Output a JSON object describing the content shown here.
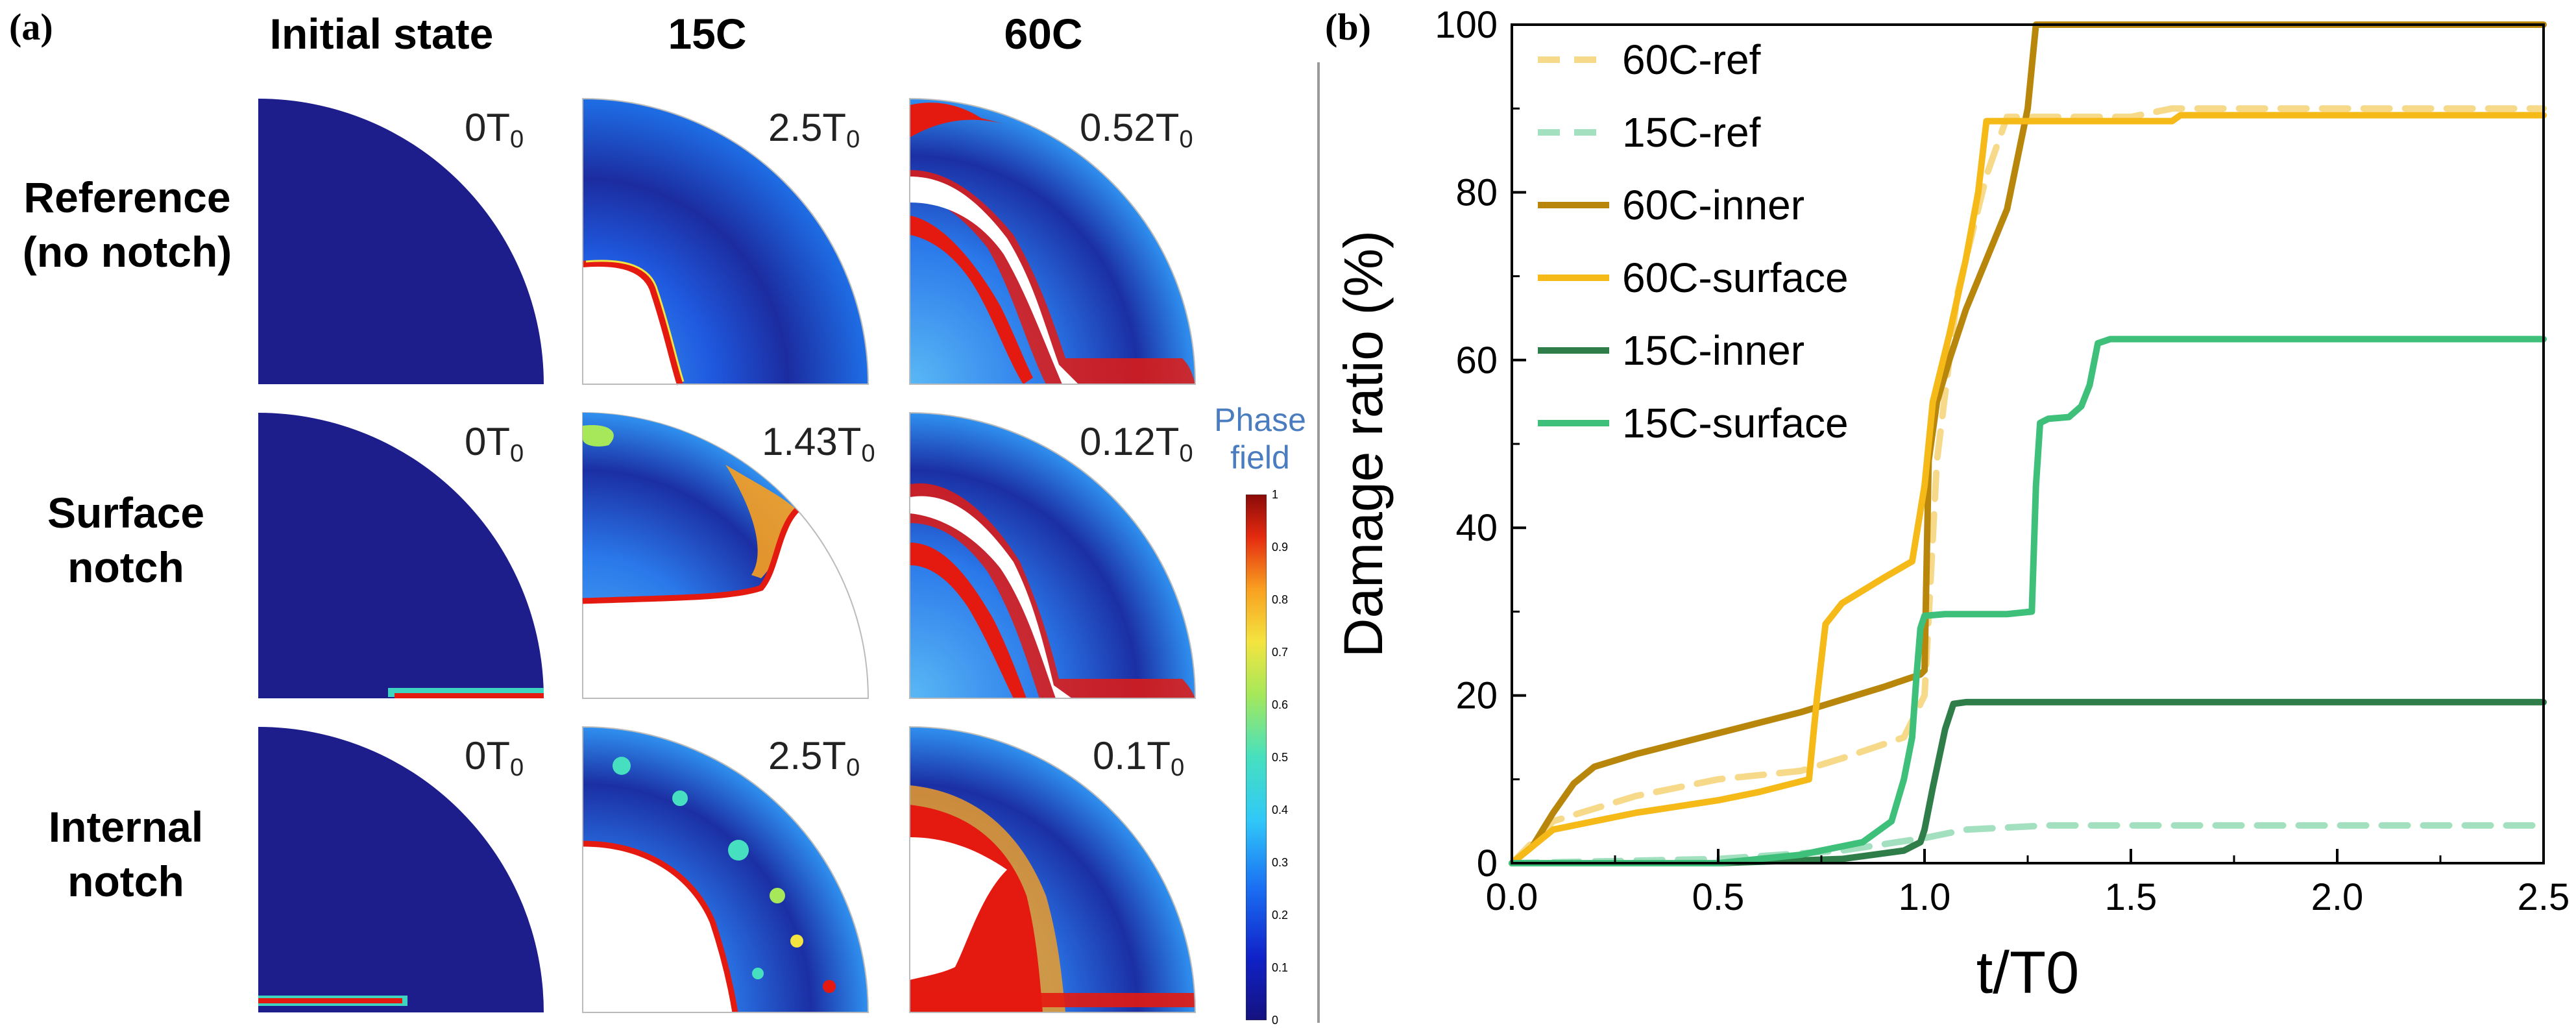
{
  "panel_a": {
    "label": "(a)",
    "columns": [
      "Initial state",
      "15C",
      "60C"
    ],
    "rows": [
      {
        "label_lines": [
          "Reference",
          "(no notch)"
        ],
        "times": [
          "0T",
          "2.5T",
          "0.52T"
        ]
      },
      {
        "label_lines": [
          "Surface",
          "notch"
        ],
        "times": [
          "0T",
          "1.43T",
          "0.12T"
        ]
      },
      {
        "label_lines": [
          "Internal",
          "notch"
        ],
        "times": [
          "0T",
          "2.5T",
          "0.1T"
        ]
      }
    ],
    "time_sub": "0",
    "colorbar": {
      "title_lines": [
        "Phase",
        "field"
      ],
      "ticks": [
        "1",
        "0.9",
        "0.8",
        "0.7",
        "0.6",
        "0.5",
        "0.4",
        "0.3",
        "0.2",
        "0.1",
        "0"
      ]
    }
  },
  "panel_b": {
    "label": "(b)"
  },
  "colors": {
    "field_low": "#1d1e8c",
    "field_mid": "#1e64e0",
    "field_hot": "#e41a10",
    "c60_ref": "#f7d98a",
    "c15_ref": "#a3e0c0",
    "c60_inner": "#b8860b",
    "c60_surface": "#f5b918",
    "c15_inner": "#2f7d48",
    "c15_surface": "#3fc07a"
  },
  "chart_data": {
    "type": "line",
    "xlabel": "t/T0",
    "ylabel": "Damage ratio (%)",
    "xlim": [
      0.0,
      2.5
    ],
    "ylim": [
      0,
      100
    ],
    "xticks": [
      0.0,
      0.5,
      1.0,
      1.5,
      2.0,
      2.5
    ],
    "xtick_labels": [
      "0.0",
      "0.5",
      "1.0",
      "1.5",
      "2.0",
      "2.5"
    ],
    "yticks": [
      0,
      20,
      40,
      60,
      80,
      100
    ],
    "ytick_labels": [
      "0",
      "20",
      "40",
      "60",
      "80",
      "100"
    ],
    "legend_position": "top-left",
    "series": [
      {
        "name": "60C-ref",
        "style": "dashed",
        "color_key": "c60_ref",
        "x": [
          0,
          0.1,
          0.3,
          0.5,
          0.7,
          0.8,
          0.95,
          1.0,
          1.03,
          1.08,
          1.15,
          1.2,
          1.5,
          1.6,
          2.0,
          2.5
        ],
        "y": [
          0,
          5,
          8,
          10,
          11,
          12.5,
          15,
          20,
          48,
          68,
          82,
          89,
          89,
          90,
          90,
          90
        ]
      },
      {
        "name": "15C-ref",
        "style": "dashed",
        "color_key": "c15_ref",
        "x": [
          0,
          0.5,
          0.8,
          1.0,
          1.1,
          1.3,
          2.0,
          2.5
        ],
        "y": [
          0,
          0.5,
          1.5,
          3,
          4,
          4.5,
          4.5,
          4.5
        ]
      },
      {
        "name": "60C-inner",
        "style": "solid",
        "color_key": "c60_inner",
        "x": [
          0,
          0.05,
          0.1,
          0.15,
          0.2,
          0.3,
          0.5,
          0.7,
          0.9,
          0.99,
          1.0,
          1.01,
          1.03,
          1.06,
          1.1,
          1.15,
          1.2,
          1.25,
          1.27,
          2.5
        ],
        "y": [
          0,
          2,
          6,
          9.5,
          11.5,
          13,
          15.5,
          18,
          21,
          22.5,
          23,
          48,
          55,
          60,
          66,
          72,
          78,
          90,
          100,
          100
        ]
      },
      {
        "name": "60C-surface",
        "style": "solid",
        "color_key": "c60_surface",
        "x": [
          0,
          0.1,
          0.3,
          0.5,
          0.6,
          0.72,
          0.74,
          0.76,
          0.8,
          0.9,
          0.97,
          1.0,
          1.02,
          1.06,
          1.1,
          1.13,
          1.15,
          1.6,
          1.62,
          2.5
        ],
        "y": [
          0,
          4,
          6,
          7.5,
          8.5,
          10,
          20,
          28.5,
          31,
          34,
          36,
          45,
          55,
          63,
          72,
          80,
          88.5,
          88.5,
          89.2,
          89.2
        ]
      },
      {
        "name": "15C-inner",
        "style": "solid",
        "color_key": "c15_inner",
        "x": [
          0,
          0.5,
          0.8,
          0.95,
          0.99,
          1.0,
          1.02,
          1.05,
          1.07,
          1.1,
          1.3,
          2.5
        ],
        "y": [
          0,
          0,
          0.5,
          1.5,
          2.5,
          4,
          9,
          16,
          19,
          19.2,
          19.2,
          19.2
        ]
      },
      {
        "name": "15C-surface",
        "style": "solid",
        "color_key": "c15_surface",
        "x": [
          0,
          0.5,
          0.7,
          0.85,
          0.92,
          0.95,
          0.97,
          0.98,
          0.99,
          1.0,
          1.05,
          1.2,
          1.26,
          1.27,
          1.28,
          1.3,
          1.35,
          1.38,
          1.4,
          1.42,
          1.45,
          1.6,
          2.5
        ],
        "y": [
          0,
          0,
          1,
          2.5,
          5,
          10,
          15,
          22,
          28,
          29.5,
          29.7,
          29.7,
          30,
          45,
          52.5,
          53,
          53.2,
          54.5,
          57,
          62,
          62.5,
          62.5,
          62.5
        ]
      }
    ]
  }
}
